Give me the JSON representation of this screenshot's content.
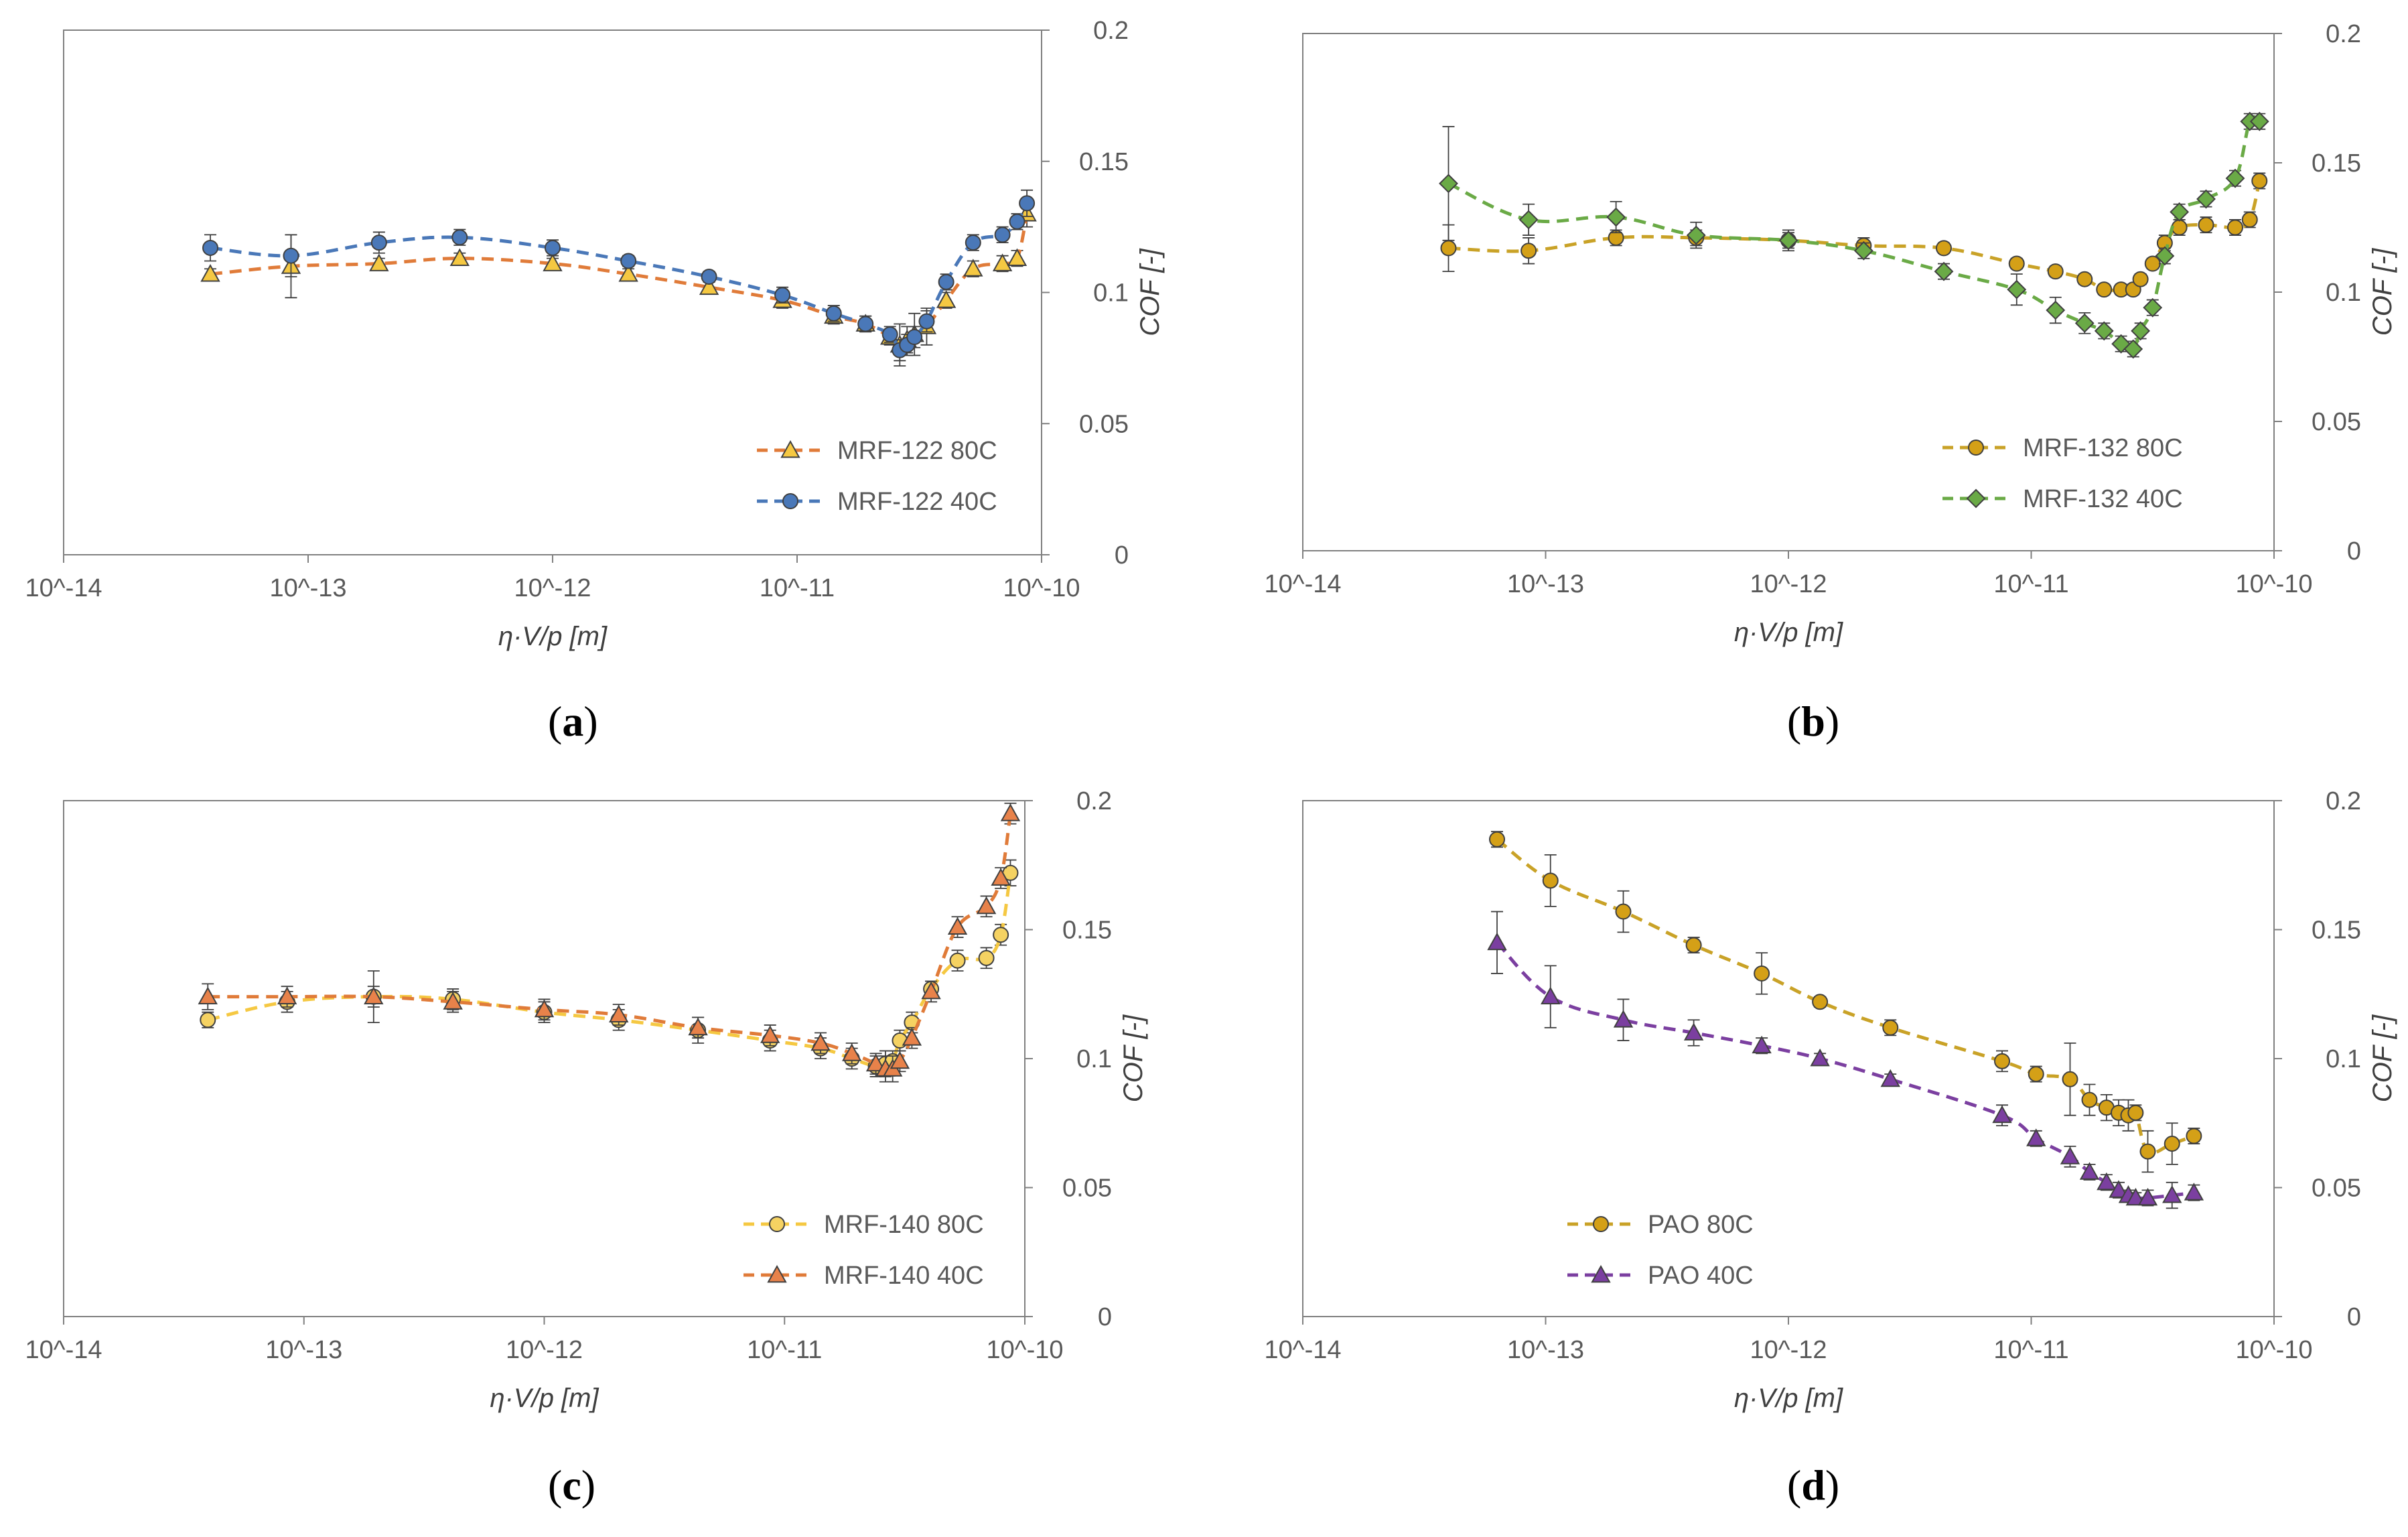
{
  "chart_data": [
    {
      "id": "a",
      "type": "line",
      "caption": "a",
      "xlabel": "η·V/p [m]",
      "ylabel": "COF [-]",
      "xscale": "log",
      "xlim_exp": [
        -14,
        -10
      ],
      "ylim": [
        0,
        0.2
      ],
      "xtick_labels": [
        "10^-14",
        "10^-13",
        "10^-12",
        "10^-11",
        "10^-10"
      ],
      "ytick_labels": [
        "0",
        "0.05",
        "0.1",
        "0.15",
        "0.2"
      ],
      "legend_position": "bottom-right",
      "series": [
        {
          "name": "MRF-122 80C",
          "color": "#e07b39",
          "marker": "triangle",
          "marker_fill": "#f5c842",
          "x_exp": [
            -13.4,
            -13.07,
            -12.71,
            -12.38,
            -12.0,
            -11.69,
            -11.36,
            -11.06,
            -10.85,
            -10.72,
            -10.62,
            -10.58,
            -10.55,
            -10.52,
            -10.47,
            -10.39,
            -10.28,
            -10.16,
            -10.1,
            -10.06
          ],
          "y": [
            0.107,
            0.11,
            0.111,
            0.113,
            0.111,
            0.107,
            0.102,
            0.097,
            0.091,
            0.088,
            0.083,
            0.08,
            0.082,
            0.084,
            0.087,
            0.097,
            0.109,
            0.111,
            0.113,
            0.13
          ],
          "err": [
            0.002,
            0.012,
            0.002,
            0.002,
            0.002,
            0.002,
            0.002,
            0.003,
            0.003,
            0.003,
            0.003,
            0.008,
            0.005,
            0.008,
            0.007,
            0.003,
            0.003,
            0.003,
            0.003,
            0.005
          ]
        },
        {
          "name": "MRF-122 40C",
          "color": "#4a78b8",
          "marker": "circle",
          "marker_fill": "#4a78b8",
          "x_exp": [
            -13.4,
            -13.07,
            -12.71,
            -12.38,
            -12.0,
            -11.69,
            -11.36,
            -11.06,
            -10.85,
            -10.72,
            -10.62,
            -10.58,
            -10.55,
            -10.52,
            -10.47,
            -10.39,
            -10.28,
            -10.16,
            -10.1,
            -10.06
          ],
          "y": [
            0.117,
            0.114,
            0.119,
            0.121,
            0.117,
            0.112,
            0.106,
            0.099,
            0.092,
            0.088,
            0.084,
            0.078,
            0.08,
            0.083,
            0.089,
            0.104,
            0.119,
            0.122,
            0.127,
            0.134
          ],
          "err": [
            0.005,
            0.008,
            0.004,
            0.003,
            0.003,
            0.002,
            0.002,
            0.003,
            0.003,
            0.003,
            0.003,
            0.004,
            0.004,
            0.004,
            0.004,
            0.003,
            0.003,
            0.003,
            0.003,
            0.005
          ]
        }
      ],
      "legend": [
        {
          "label": "MRF-122 80C"
        },
        {
          "label": "MRF-122 40C"
        }
      ]
    },
    {
      "id": "b",
      "type": "line",
      "caption": "b",
      "xlabel": "η·V/p [m]",
      "ylabel": "COF [-]",
      "xscale": "log",
      "xlim_exp": [
        -14,
        -10
      ],
      "ylim": [
        0,
        0.2
      ],
      "xtick_labels": [
        "10^-14",
        "10^-13",
        "10^-12",
        "10^-11",
        "10^-10"
      ],
      "ytick_labels": [
        "0",
        "0.05",
        "0.1",
        "0.15",
        "0.2"
      ],
      "legend_position": "bottom-right",
      "series": [
        {
          "name": "MRF-132 80C",
          "color": "#c9a227",
          "marker": "circle",
          "marker_fill": "#d4a017",
          "x_exp": [
            -13.4,
            -13.07,
            -12.71,
            -12.38,
            -12.0,
            -11.69,
            -11.36,
            -11.06,
            -10.9,
            -10.78,
            -10.7,
            -10.63,
            -10.58,
            -10.55,
            -10.5,
            -10.45,
            -10.39,
            -10.28,
            -10.16,
            -10.1,
            -10.06
          ],
          "y": [
            0.117,
            0.116,
            0.121,
            0.121,
            0.12,
            0.118,
            0.117,
            0.111,
            0.108,
            0.105,
            0.101,
            0.101,
            0.101,
            0.105,
            0.111,
            0.119,
            0.125,
            0.126,
            0.125,
            0.128,
            0.143
          ],
          "err": [
            0.009,
            0.005,
            0.003,
            0.003,
            0.003,
            0.003,
            0.002,
            0.002,
            0.002,
            0.002,
            0.002,
            0.002,
            0.002,
            0.002,
            0.002,
            0.003,
            0.003,
            0.003,
            0.003,
            0.003,
            0.003
          ]
        },
        {
          "name": "MRF-132 40C",
          "color": "#6aaa46",
          "marker": "diamond",
          "marker_fill": "#6aaa46",
          "x_exp": [
            -13.4,
            -13.07,
            -12.71,
            -12.38,
            -12.0,
            -11.69,
            -11.36,
            -11.06,
            -10.9,
            -10.78,
            -10.7,
            -10.63,
            -10.58,
            -10.55,
            -10.5,
            -10.45,
            -10.39,
            -10.28,
            -10.16,
            -10.1,
            -10.06
          ],
          "y": [
            0.142,
            0.128,
            0.129,
            0.122,
            0.12,
            0.116,
            0.108,
            0.101,
            0.093,
            0.088,
            0.085,
            0.08,
            0.078,
            0.085,
            0.094,
            0.114,
            0.131,
            0.136,
            0.144,
            0.166,
            0.166
          ],
          "err": [
            0.022,
            0.006,
            0.006,
            0.005,
            0.004,
            0.003,
            0.003,
            0.006,
            0.005,
            0.004,
            0.003,
            0.003,
            0.003,
            0.003,
            0.003,
            0.003,
            0.003,
            0.003,
            0.003,
            0.003,
            0.003
          ]
        }
      ],
      "legend": [
        {
          "label": "MRF-132 80C"
        },
        {
          "label": "MRF-132 40C"
        }
      ]
    },
    {
      "id": "c",
      "type": "line",
      "caption": "c",
      "xlabel": "η·V/p [m]",
      "ylabel": "COF [-]",
      "xscale": "log",
      "xlim_exp": [
        -14,
        -10
      ],
      "ylim": [
        0,
        0.2
      ],
      "xtick_labels": [
        "10^-14",
        "10^-13",
        "10^-12",
        "10^-11",
        "10^-10"
      ],
      "ytick_labels": [
        "0",
        "0.05",
        "0.1",
        "0.15",
        "0.2"
      ],
      "legend_position": "bottom-right",
      "series": [
        {
          "name": "MRF-140 80C",
          "color": "#f5c842",
          "marker": "circle",
          "marker_fill": "#f5d262",
          "x_exp": [
            -13.4,
            -13.07,
            -12.71,
            -12.38,
            -12.0,
            -11.69,
            -11.36,
            -11.06,
            -10.85,
            -10.72,
            -10.62,
            -10.58,
            -10.55,
            -10.52,
            -10.47,
            -10.39,
            -10.28,
            -10.16,
            -10.1,
            -10.06
          ],
          "y": [
            0.115,
            0.122,
            0.124,
            0.123,
            0.118,
            0.115,
            0.111,
            0.107,
            0.104,
            0.1,
            0.097,
            0.098,
            0.099,
            0.107,
            0.114,
            0.127,
            0.138,
            0.139,
            0.148,
            0.172
          ],
          "err": [
            0.003,
            0.004,
            0.01,
            0.004,
            0.004,
            0.004,
            0.005,
            0.004,
            0.004,
            0.004,
            0.004,
            0.005,
            0.004,
            0.004,
            0.004,
            0.003,
            0.004,
            0.004,
            0.004,
            0.005
          ]
        },
        {
          "name": "MRF-140 40C",
          "color": "#e07b39",
          "marker": "triangle",
          "marker_fill": "#e8824a",
          "x_exp": [
            -13.4,
            -13.07,
            -12.71,
            -12.38,
            -12.0,
            -11.69,
            -11.36,
            -11.06,
            -10.85,
            -10.72,
            -10.62,
            -10.58,
            -10.55,
            -10.52,
            -10.47,
            -10.39,
            -10.28,
            -10.16,
            -10.1,
            -10.06
          ],
          "y": [
            0.124,
            0.124,
            0.124,
            0.122,
            0.119,
            0.117,
            0.112,
            0.109,
            0.106,
            0.102,
            0.098,
            0.096,
            0.096,
            0.099,
            0.108,
            0.126,
            0.151,
            0.159,
            0.17,
            0.195
          ],
          "err": [
            0.005,
            0.004,
            0.004,
            0.004,
            0.004,
            0.004,
            0.004,
            0.004,
            0.004,
            0.004,
            0.004,
            0.005,
            0.005,
            0.004,
            0.004,
            0.004,
            0.004,
            0.004,
            0.004,
            0.004
          ]
        }
      ],
      "legend": [
        {
          "label": "MRF-140 80C"
        },
        {
          "label": "MRF-140 40C"
        }
      ]
    },
    {
      "id": "d",
      "type": "line",
      "caption": "d",
      "xlabel": "η·V/p [m]",
      "ylabel": "COF [-]",
      "xscale": "log",
      "xlim_exp": [
        -14,
        -10
      ],
      "ylim": [
        0,
        0.2
      ],
      "xtick_labels": [
        "10^-14",
        "10^-13",
        "10^-12",
        "10^-11",
        "10^-10"
      ],
      "ytick_labels": [
        "0",
        "0.05",
        "0.1",
        "0.15",
        "0.2"
      ],
      "legend_position": "bottom-left",
      "series": [
        {
          "name": "PAO 80C",
          "color": "#c9a227",
          "marker": "circle",
          "marker_fill": "#d4a017",
          "x_exp": [
            -13.2,
            -12.98,
            -12.68,
            -12.39,
            -12.11,
            -11.87,
            -11.58,
            -11.12,
            -10.98,
            -10.84,
            -10.76,
            -10.69,
            -10.64,
            -10.6,
            -10.57,
            -10.52,
            -10.42,
            -10.33
          ],
          "y": [
            0.185,
            0.169,
            0.157,
            0.144,
            0.133,
            0.122,
            0.112,
            0.099,
            0.094,
            0.092,
            0.084,
            0.081,
            0.079,
            0.078,
            0.079,
            0.064,
            0.067,
            0.07
          ],
          "err": [
            0.003,
            0.01,
            0.008,
            0.003,
            0.008,
            0.002,
            0.003,
            0.004,
            0.003,
            0.014,
            0.006,
            0.005,
            0.005,
            0.006,
            0.003,
            0.008,
            0.008,
            0.003
          ]
        },
        {
          "name": "PAO 40C",
          "color": "#7b3fa0",
          "marker": "triangle",
          "marker_fill": "#7b3fa0",
          "x_exp": [
            -13.2,
            -12.98,
            -12.68,
            -12.39,
            -12.11,
            -11.87,
            -11.58,
            -11.12,
            -10.98,
            -10.84,
            -10.76,
            -10.69,
            -10.64,
            -10.6,
            -10.57,
            -10.52,
            -10.42,
            -10.33
          ],
          "y": [
            0.145,
            0.124,
            0.115,
            0.11,
            0.105,
            0.1,
            0.092,
            0.078,
            0.069,
            0.062,
            0.056,
            0.052,
            0.049,
            0.047,
            0.046,
            0.046,
            0.047,
            0.048
          ],
          "err": [
            0.012,
            0.012,
            0.008,
            0.005,
            0.003,
            0.002,
            0.002,
            0.004,
            0.003,
            0.004,
            0.003,
            0.003,
            0.003,
            0.002,
            0.002,
            0.003,
            0.005,
            0.003
          ]
        }
      ],
      "legend": [
        {
          "label": "PAO 80C"
        },
        {
          "label": "PAO 40C"
        }
      ]
    }
  ]
}
